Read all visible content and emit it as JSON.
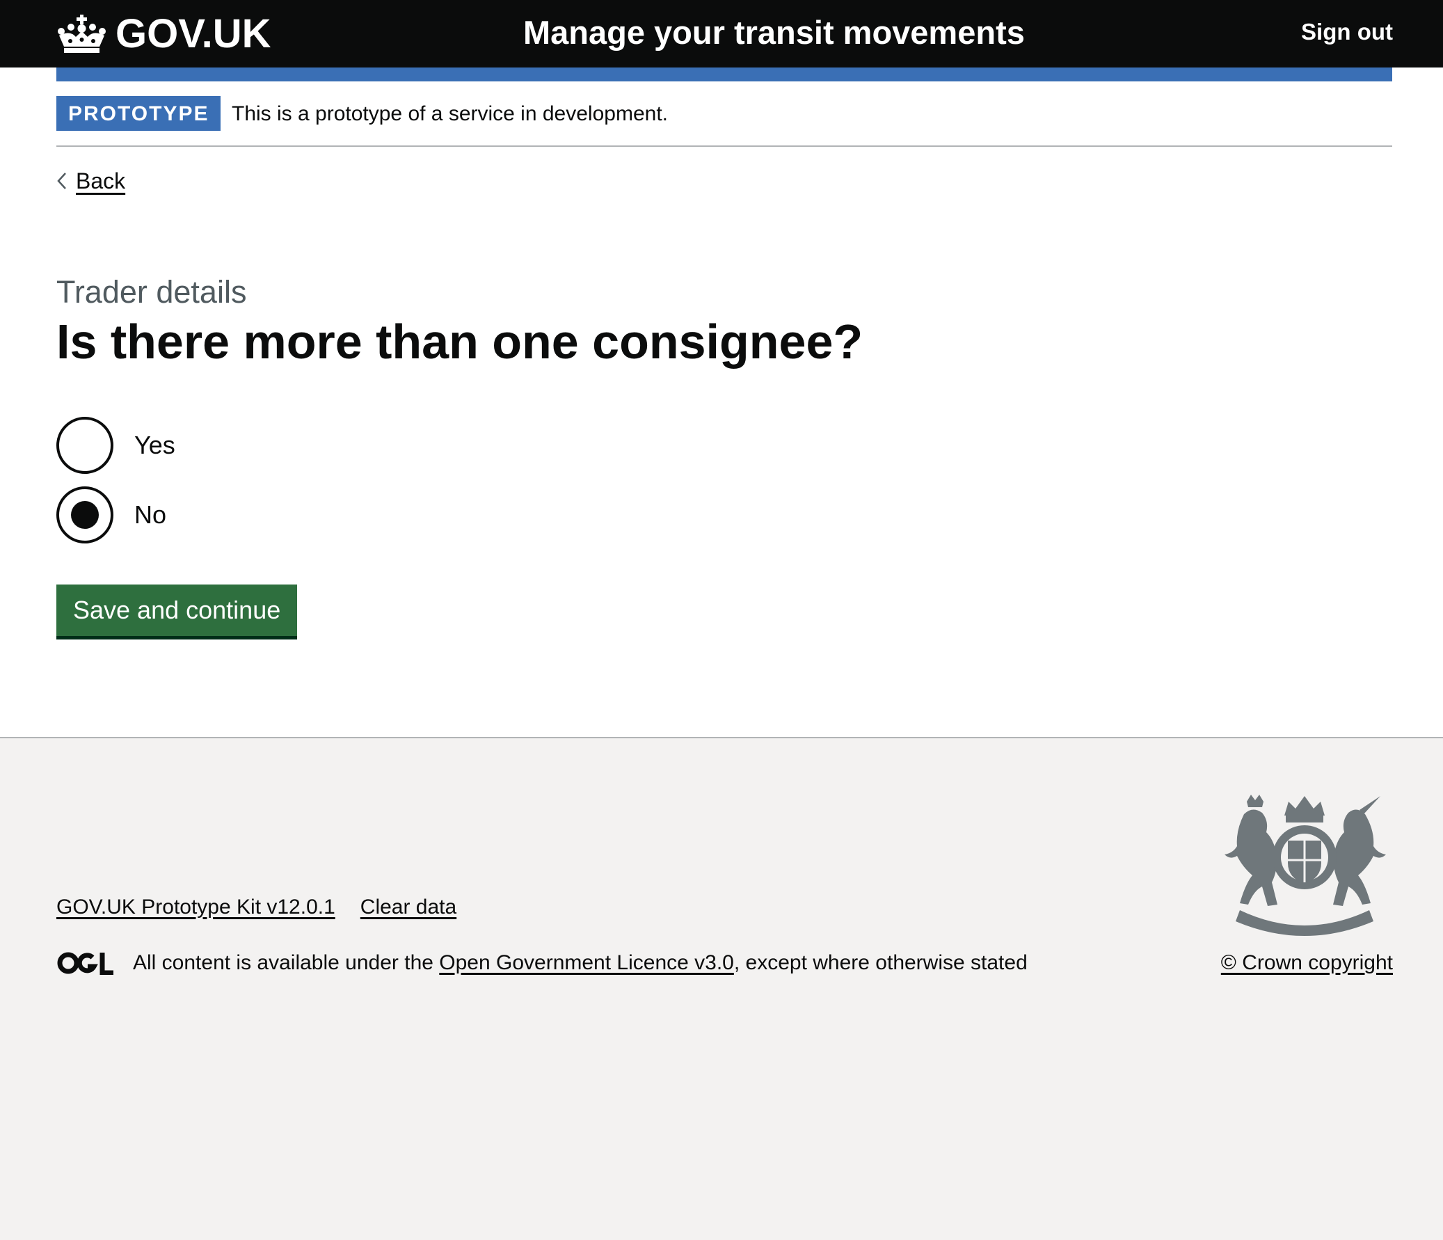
{
  "header": {
    "logo_text": "GOV.UK",
    "service_name": "Manage your transit movements",
    "sign_out": "Sign out",
    "colors": {
      "background": "#0b0c0c",
      "accent_bar": "#3a6fb5"
    }
  },
  "phase_banner": {
    "tag": "PROTOTYPE",
    "text": "This is a prototype of a service in development."
  },
  "back_link": {
    "label": "Back",
    "icon": "chevron-left-icon"
  },
  "form": {
    "caption": "Trader details",
    "question": "Is there more than one consignee?",
    "options": [
      {
        "label": "Yes",
        "selected": false
      },
      {
        "label": "No",
        "selected": true
      }
    ],
    "submit_label": "Save and continue",
    "colors": {
      "button": "#2e6f3e"
    }
  },
  "footer": {
    "links": [
      "GOV.UK Prototype Kit v12.0.1",
      "Clear data"
    ],
    "licence_prefix": "All content is available under the ",
    "licence_link": "Open Government Licence v3.0",
    "licence_suffix": ", except where otherwise stated",
    "copyright": "© Crown copyright",
    "colors": {
      "background": "#f3f2f1",
      "border": "#b1b4b6"
    }
  }
}
